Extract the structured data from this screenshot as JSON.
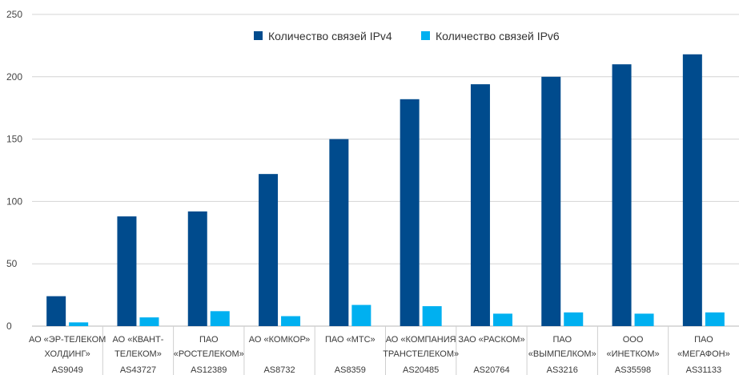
{
  "chart_data": {
    "type": "bar",
    "title": "",
    "xlabel": "",
    "ylabel": "",
    "ylim": [
      0,
      250
    ],
    "yticks": [
      0,
      50,
      100,
      150,
      200,
      250
    ],
    "grid": true,
    "legend_position": "top",
    "categories": [
      [
        "АО «ЭР-ТЕЛЕКОМ",
        "ХОЛДИНГ»",
        "AS9049"
      ],
      [
        "АО «КВАНТ-",
        "ТЕЛЕКОМ»",
        "AS43727"
      ],
      [
        "ПАО",
        "«РОСТЕЛЕКОМ»",
        "AS12389"
      ],
      [
        "АО «КОМКОР»",
        "",
        "AS8732"
      ],
      [
        "ПАО «МТС»",
        "",
        "AS8359"
      ],
      [
        "АО «КОМПАНИЯ",
        "ТРАНСТЕЛЕКОМ»",
        "AS20485"
      ],
      [
        "ЗАО «РАСКОМ»",
        "",
        "AS20764"
      ],
      [
        "ПАО",
        "«ВЫМПЕЛКОМ»",
        "AS3216"
      ],
      [
        "ООО",
        "«ИНЕТКОМ»",
        "AS35598"
      ],
      [
        "ПАО",
        "«МЕГАФОН»",
        "AS31133"
      ]
    ],
    "series": [
      {
        "name": "Количество связей IPv4",
        "color": "#004b8d",
        "values": [
          24,
          88,
          92,
          122,
          150,
          182,
          194,
          200,
          210,
          218
        ]
      },
      {
        "name": "Количество связей IPv6",
        "color": "#00b0f0",
        "values": [
          3,
          7,
          12,
          8,
          17,
          16,
          10,
          11,
          10,
          11
        ]
      }
    ]
  }
}
